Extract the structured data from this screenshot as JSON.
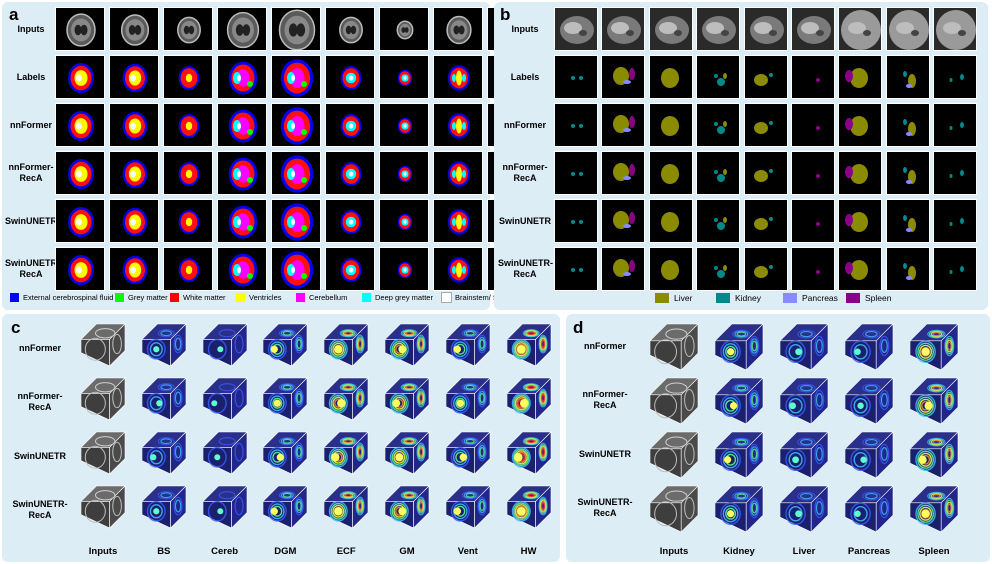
{
  "panel_a": {
    "letter": "a",
    "rows": [
      "Inputs",
      "Labels",
      "nnFormer",
      "nnFormer-\nRecA",
      "SwinUNETR",
      "SwinUNETR-\nRecA"
    ],
    "legend": [
      {
        "label": "External cerebrospinal fluid",
        "color": "#0000ff"
      },
      {
        "label": "Grey matter",
        "color": "#00ff00"
      },
      {
        "label": "White matter",
        "color": "#ff0000"
      },
      {
        "label": "Ventricles",
        "color": "#ffff00"
      },
      {
        "label": "Cerebellum",
        "color": "#ff00ff"
      },
      {
        "label": "Deep grey matter",
        "color": "#00ffff"
      },
      {
        "label": "Brainstem/ Spinal cord",
        "color": "#ffffff"
      }
    ]
  },
  "panel_b": {
    "letter": "b",
    "rows": [
      "Inputs",
      "Labels",
      "nnFormer",
      "nnFormer-\nRecA",
      "SwinUNETR",
      "SwinUNETR-\nRecA"
    ],
    "legend": [
      {
        "label": "Liver",
        "color": "#8b8b00"
      },
      {
        "label": "Kidney",
        "color": "#00888a"
      },
      {
        "label": "Pancreas",
        "color": "#8a8aff"
      },
      {
        "label": "Spleen",
        "color": "#8b008b"
      }
    ]
  },
  "panel_c": {
    "letter": "c",
    "rows": [
      "nnFormer",
      "nnFormer-\nRecA",
      "SwinUNETR",
      "SwinUNETR-\nRecA"
    ],
    "columns": [
      "Inputs",
      "BS",
      "Cereb",
      "DGM",
      "ECF",
      "GM",
      "Vent",
      "HW"
    ]
  },
  "panel_d": {
    "letter": "d",
    "rows": [
      "nnFormer",
      "nnFormer-\nRecA",
      "SwinUNETR",
      "SwinUNETR-\nRecA"
    ],
    "columns": [
      "Inputs",
      "Kidney",
      "Liver",
      "Pancreas",
      "Spleen"
    ]
  }
}
